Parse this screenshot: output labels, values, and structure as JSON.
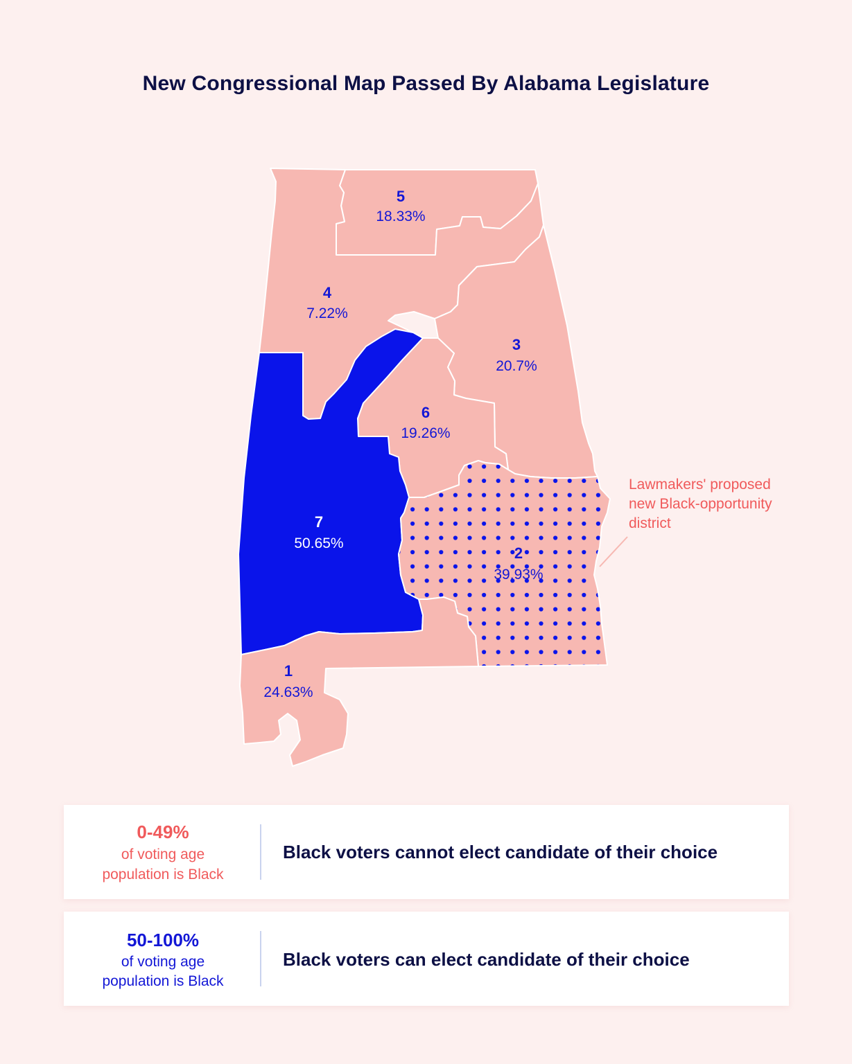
{
  "title": "New Congressional Map Passed By Alabama Legislature",
  "colors": {
    "background": "#fdf0ef",
    "minority_fill": "#f7b8b2",
    "majority_fill": "#0a14ea",
    "dots": "#0a14ea",
    "label_blue": "#1317d6",
    "callout": "#f05a5b",
    "dark_text": "#0d1045"
  },
  "districts": [
    {
      "id": "5",
      "number": "5",
      "pct": "18.33%",
      "category": "0-49%",
      "highlighted": false
    },
    {
      "id": "4",
      "number": "4",
      "pct": "7.22%",
      "category": "0-49%",
      "highlighted": false
    },
    {
      "id": "3",
      "number": "3",
      "pct": "20.7%",
      "category": "0-49%",
      "highlighted": false
    },
    {
      "id": "6",
      "number": "6",
      "pct": "19.26%",
      "category": "0-49%",
      "highlighted": false
    },
    {
      "id": "7",
      "number": "7",
      "pct": "50.65%",
      "category": "50-100%",
      "highlighted": false
    },
    {
      "id": "2",
      "number": "2",
      "pct": "39.93%",
      "category": "0-49%",
      "highlighted": true
    },
    {
      "id": "1",
      "number": "1",
      "pct": "24.63%",
      "category": "0-49%",
      "highlighted": false
    }
  ],
  "callout": {
    "line1": "Lawmakers' proposed",
    "line2": "new Black-opportunity",
    "line3": "district"
  },
  "legend": [
    {
      "range": "0-49%",
      "desc_line1": "of voting age",
      "desc_line2": "population is Black",
      "text": "Black voters cannot elect candidate of their choice",
      "color": "#f05a5b"
    },
    {
      "range": "50-100%",
      "desc_line1": "of voting age",
      "desc_line2": "population is Black",
      "text": "Black voters can elect candidate of their choice",
      "color": "#1317d6"
    }
  ]
}
